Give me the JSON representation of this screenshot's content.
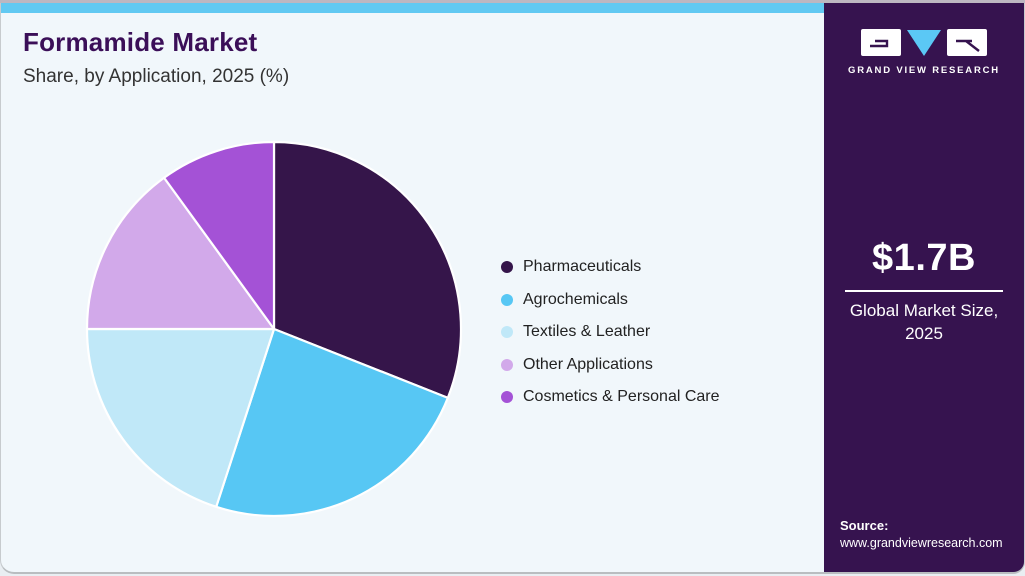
{
  "page": {
    "title": "Formamide Market",
    "subtitle": "Share, by Application, 2025 (%)",
    "accent_topbar_color": "#62c9f2",
    "background_color": "#f1f7fb",
    "sidebar_color": "#36134f",
    "title_color": "#3b0f58"
  },
  "chart_data": {
    "type": "pie",
    "title": "Formamide Market Share, by Application, 2025 (%)",
    "categories": [
      "Pharmaceuticals",
      "Agrochemicals",
      "Textiles & Leather",
      "Other Applications",
      "Cosmetics & Personal Care"
    ],
    "values": [
      31,
      24,
      20,
      15,
      10
    ],
    "colors": [
      "#35154a",
      "#57c7f4",
      "#c0e8f8",
      "#d2a9ea",
      "#a452d6"
    ],
    "start_angle_deg": 0,
    "direction": "clockwise",
    "legend_position": "right",
    "data_labels": false,
    "slice_border_color": "#ffffff"
  },
  "sidebar": {
    "logo_text": "GRAND VIEW RESEARCH",
    "market_size": "$1.7B",
    "market_size_label": "Global Market Size,\n2025",
    "source_label": "Source:",
    "source_url": "www.grandviewresearch.com"
  }
}
